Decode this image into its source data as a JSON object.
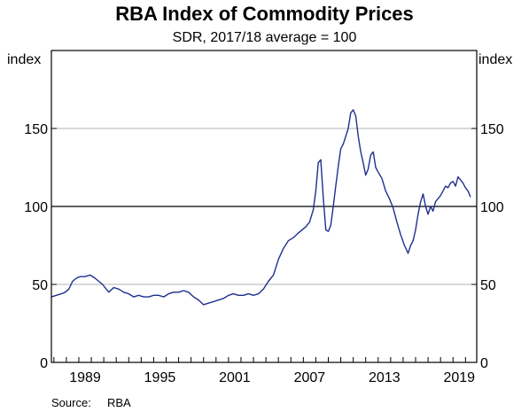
{
  "chart_data": {
    "type": "line",
    "title": "RBA Index of Commodity Prices",
    "subtitle": "SDR, 2017/18 average = 100",
    "ylabel_left": "index",
    "ylabel_right": "index",
    "xlim": [
      1986.8,
      2020.9
    ],
    "ylim": [
      0,
      200
    ],
    "yticks": [
      0,
      50,
      100,
      150
    ],
    "xticks": [
      1989,
      1995,
      2001,
      2007,
      2013,
      2019
    ],
    "reference_line": 100,
    "grid": true,
    "line_color": "#1f2f8f",
    "source_label": "Source:",
    "source_value": "RBA",
    "series": [
      {
        "x": [
          1986.8,
          1987.2,
          1987.6,
          1987.9,
          1988.2,
          1988.5,
          1988.8,
          1989.1,
          1989.5,
          1989.9,
          1990.3,
          1990.6,
          1990.9,
          1991.1,
          1991.4,
          1991.8,
          1992.2,
          1992.6,
          1993.0,
          1993.4,
          1993.8,
          1994.2,
          1994.6,
          1995.0,
          1995.4,
          1995.8,
          1996.2,
          1996.6,
          1997.0,
          1997.4,
          1997.8,
          1998.2,
          1998.6,
          1999.0,
          1999.4,
          1999.8,
          2000.2,
          2000.6,
          2001.0,
          2001.4,
          2001.8,
          2002.2,
          2002.6,
          2003.0,
          2003.4,
          2003.8,
          2004.2,
          2004.6,
          2005.0,
          2005.4,
          2005.8,
          2006.2,
          2006.6,
          2006.9,
          2007.2,
          2007.5,
          2007.8,
          2008.0,
          2008.2,
          2008.4,
          2008.6,
          2008.8,
          2009.0,
          2009.2,
          2009.4,
          2009.6,
          2009.8,
          2010.0,
          2010.2,
          2010.4,
          2010.6,
          2010.8,
          2011.0,
          2011.2,
          2011.4,
          2011.6,
          2011.8,
          2012.0,
          2012.2,
          2012.4,
          2012.6,
          2012.8,
          2013.0,
          2013.3,
          2013.6,
          2013.9,
          2014.2,
          2014.5,
          2014.8,
          2015.1,
          2015.4,
          2015.6,
          2015.8,
          2016.0,
          2016.2,
          2016.4,
          2016.6,
          2016.8,
          2017.0,
          2017.2,
          2017.4,
          2017.6,
          2017.8,
          2018.0,
          2018.2,
          2018.4,
          2018.6,
          2018.8,
          2019.0,
          2019.2,
          2019.4,
          2019.6,
          2019.8,
          2020.0,
          2020.2,
          2020.4
        ],
        "y": [
          42,
          43,
          44,
          45,
          47,
          52,
          54,
          55,
          55,
          56,
          54,
          52,
          50,
          48,
          45,
          48,
          47,
          45,
          44,
          42,
          43,
          42,
          42,
          43,
          43,
          42,
          44,
          45,
          45,
          46,
          45,
          42,
          40,
          37,
          38,
          39,
          40,
          41,
          43,
          44,
          43,
          43,
          44,
          43,
          44,
          47,
          52,
          56,
          66,
          73,
          78,
          80,
          83,
          85,
          87,
          90,
          98,
          110,
          128,
          130,
          105,
          85,
          84,
          88,
          100,
          113,
          126,
          137,
          140,
          145,
          150,
          160,
          162,
          158,
          145,
          135,
          128,
          120,
          124,
          133,
          135,
          125,
          122,
          118,
          110,
          105,
          99,
          90,
          82,
          75,
          70,
          75,
          78,
          85,
          95,
          103,
          108,
          100,
          95,
          100,
          97,
          103,
          105,
          107,
          110,
          113,
          112,
          115,
          116,
          113,
          119,
          117,
          115,
          112,
          110,
          106
        ]
      }
    ]
  }
}
